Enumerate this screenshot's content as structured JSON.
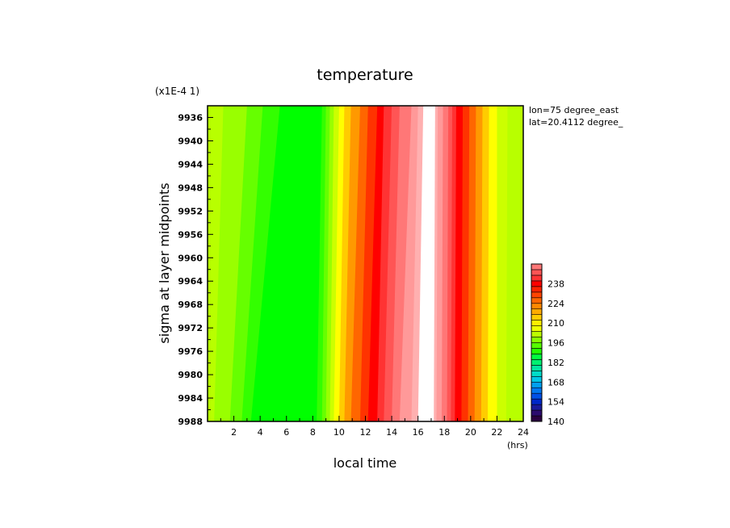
{
  "chart_data": {
    "type": "heatmap",
    "title": "temperature",
    "scale_note": "(x1E-4 1)",
    "xlabel": "local time",
    "xunit": "(hrs)",
    "ylabel": "sigma at layer midpoints",
    "annotations": [
      "lon=75 degree_east",
      "lat=20.4112 degree_"
    ],
    "xlim": [
      0,
      24
    ],
    "ylim": [
      9988,
      9934
    ],
    "x_ticks": [
      2,
      4,
      6,
      8,
      10,
      12,
      14,
      16,
      18,
      20,
      22,
      24
    ],
    "y_ticks": [
      9936,
      9940,
      9944,
      9948,
      9952,
      9956,
      9960,
      9964,
      9968,
      9972,
      9976,
      9980,
      9984,
      9988
    ],
    "colorbar": {
      "min": 140,
      "max": 252,
      "step": 4,
      "tick_labels": [
        140,
        154,
        168,
        182,
        196,
        210,
        224,
        238
      ]
    },
    "contours": [
      {
        "x_bottom": 0.0,
        "x_top": 0.0,
        "color": "#b8ff00"
      },
      {
        "x_bottom": 0.5,
        "x_top": 1.2,
        "color": "#99ff00"
      },
      {
        "x_bottom": 1.7,
        "x_top": 3.0,
        "color": "#66ff00"
      },
      {
        "x_bottom": 2.6,
        "x_top": 4.2,
        "color": "#33ff00"
      },
      {
        "x_bottom": 3.3,
        "x_top": 5.5,
        "color": "#00ff00"
      },
      {
        "x_bottom": 8.3,
        "x_top": 8.7,
        "color": "#33ff00"
      },
      {
        "x_bottom": 8.7,
        "x_top": 9.0,
        "color": "#66ff00"
      },
      {
        "x_bottom": 9.0,
        "x_top": 9.3,
        "color": "#99ff00"
      },
      {
        "x_bottom": 9.3,
        "x_top": 9.6,
        "color": "#ccff00"
      },
      {
        "x_bottom": 9.6,
        "x_top": 10.0,
        "color": "#ffff00"
      },
      {
        "x_bottom": 10.0,
        "x_top": 10.4,
        "color": "#ffcc00"
      },
      {
        "x_bottom": 10.4,
        "x_top": 10.9,
        "color": "#ff9900"
      },
      {
        "x_bottom": 10.9,
        "x_top": 11.6,
        "color": "#ff6600"
      },
      {
        "x_bottom": 11.6,
        "x_top": 12.2,
        "color": "#ff3300"
      },
      {
        "x_bottom": 12.2,
        "x_top": 12.9,
        "color": "#ff0000"
      },
      {
        "x_bottom": 12.9,
        "x_top": 13.4,
        "color": "#ff3333"
      },
      {
        "x_bottom": 13.4,
        "x_top": 14.0,
        "color": "#ff5555"
      },
      {
        "x_bottom": 14.0,
        "x_top": 14.6,
        "color": "#ff7777"
      },
      {
        "x_bottom": 14.6,
        "x_top": 15.5,
        "color": "#ff9999"
      },
      {
        "x_bottom": 15.5,
        "x_top": 16.0,
        "color": "#ffb0b0"
      },
      {
        "x_bottom": 16.0,
        "x_top": 16.4,
        "color": "#ffffff"
      },
      {
        "x_bottom": 17.2,
        "x_top": 17.3,
        "color": "#ffb0b0"
      },
      {
        "x_bottom": 17.4,
        "x_top": 17.5,
        "color": "#ff9999"
      },
      {
        "x_bottom": 17.8,
        "x_top": 17.9,
        "color": "#ff7777"
      },
      {
        "x_bottom": 18.2,
        "x_top": 18.3,
        "color": "#ff5555"
      },
      {
        "x_bottom": 18.5,
        "x_top": 18.6,
        "color": "#ff3333"
      },
      {
        "x_bottom": 18.8,
        "x_top": 18.9,
        "color": "#ff0000"
      },
      {
        "x_bottom": 19.3,
        "x_top": 19.4,
        "color": "#ff3300"
      },
      {
        "x_bottom": 19.8,
        "x_top": 19.9,
        "color": "#ff6600"
      },
      {
        "x_bottom": 20.3,
        "x_top": 20.4,
        "color": "#ff9900"
      },
      {
        "x_bottom": 20.8,
        "x_top": 20.9,
        "color": "#ffcc00"
      },
      {
        "x_bottom": 21.3,
        "x_top": 21.4,
        "color": "#ffff00"
      },
      {
        "x_bottom": 22.0,
        "x_top": 22.0,
        "color": "#ccff00"
      },
      {
        "x_bottom": 22.7,
        "x_top": 22.8,
        "color": "#b8ff00"
      }
    ]
  }
}
